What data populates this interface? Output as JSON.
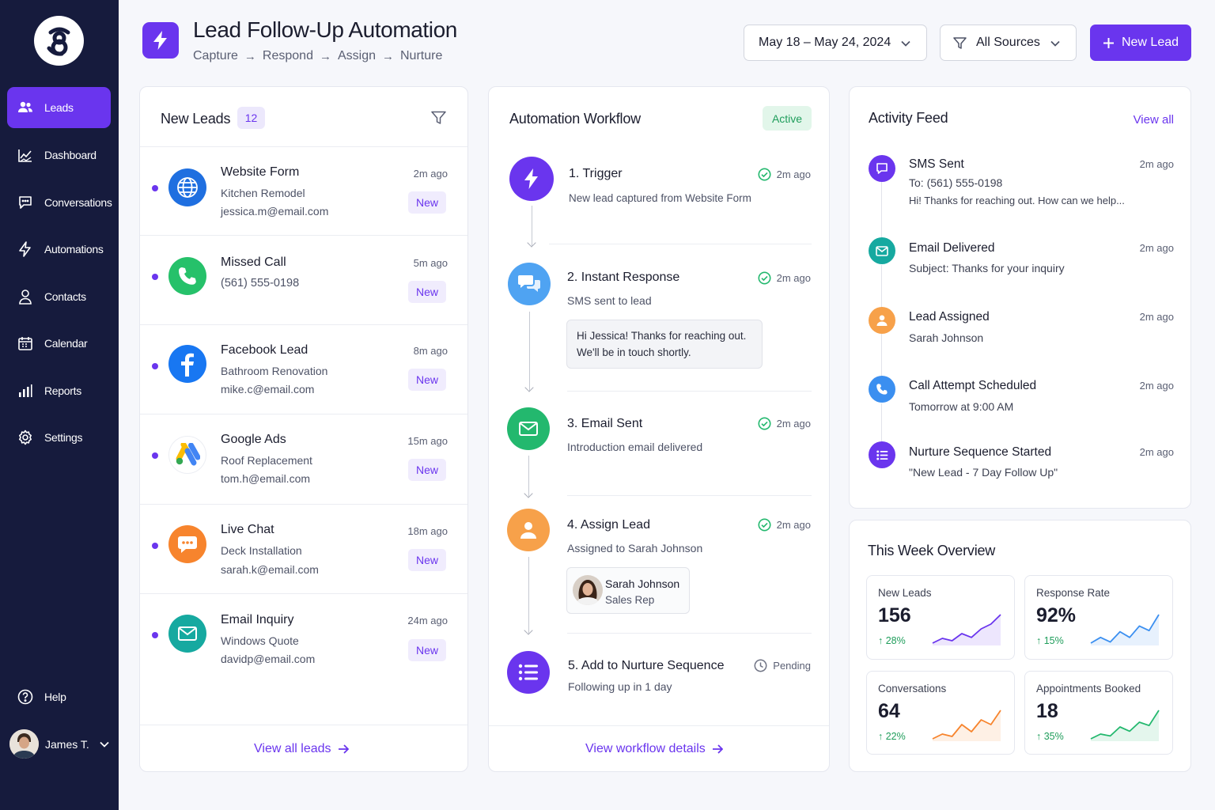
{
  "sidebar": {
    "items": [
      {
        "label": "Leads",
        "icon": "users-icon",
        "active": true
      },
      {
        "label": "Dashboard",
        "icon": "chart-line-icon"
      },
      {
        "label": "Conversations",
        "icon": "chat-icon"
      },
      {
        "label": "Automations",
        "icon": "bolt-icon"
      },
      {
        "label": "Contacts",
        "icon": "person-icon"
      },
      {
        "label": "Calendar",
        "icon": "calendar-icon"
      },
      {
        "label": "Reports",
        "icon": "bar-chart-icon"
      },
      {
        "label": "Settings",
        "icon": "gear-icon"
      }
    ],
    "help": "Help",
    "user": "James T."
  },
  "header": {
    "title": "Lead Follow-Up Automation",
    "breadcrumb": [
      "Capture",
      "Respond",
      "Assign",
      "Nurture"
    ],
    "date_range": "May 18 – May 24, 2024",
    "source_filter": "All Sources",
    "new_lead": "New Lead"
  },
  "leads": {
    "title": "New Leads",
    "count": "12",
    "items": [
      {
        "name": "Website Form",
        "detail": "Kitchen Remodel",
        "email": "jessica.m@email.com",
        "time": "2m ago",
        "badge": "New",
        "icon": "globe-icon",
        "color": "#1f6fe0"
      },
      {
        "name": "Missed Call",
        "detail": "(561) 555-0198",
        "email": "",
        "time": "5m ago",
        "badge": "New",
        "icon": "phone-icon",
        "color": "#26c16a"
      },
      {
        "name": "Facebook Lead",
        "detail": "Bathroom Renovation",
        "email": "mike.c@email.com",
        "time": "8m ago",
        "badge": "New",
        "icon": "facebook-icon",
        "color": "#1877f2"
      },
      {
        "name": "Google Ads",
        "detail": "Roof Replacement",
        "email": "tom.h@email.com",
        "time": "15m ago",
        "badge": "New",
        "icon": "google-ads-icon",
        "color": "#ffffff"
      },
      {
        "name": "Live Chat",
        "detail": "Deck Installation",
        "email": "sarah.k@email.com",
        "time": "18m ago",
        "badge": "New",
        "icon": "chat-bubble-icon",
        "color": "#f7842d"
      },
      {
        "name": "Email Inquiry",
        "detail": "Windows Quote",
        "email": "davidp@email.com",
        "time": "24m ago",
        "badge": "New",
        "icon": "mail-icon",
        "color": "#16a9a0"
      }
    ],
    "footer": "View all leads"
  },
  "workflow": {
    "title": "Automation Workflow",
    "status": "Active",
    "steps": [
      {
        "title": "1. Trigger",
        "sub": "New lead captured from Website Form",
        "time": "2m ago",
        "icon": "bolt-icon",
        "color": "#6a35ee"
      },
      {
        "title": "2. Instant Response",
        "sub": "SMS sent to lead",
        "time": "2m ago",
        "icon": "chat-icon",
        "color": "#4fa3f2",
        "message": [
          "Hi Jessica! Thanks for reaching out.",
          "We'll be in touch shortly."
        ]
      },
      {
        "title": "3. Email Sent",
        "sub": "Introduction email delivered",
        "time": "2m ago",
        "icon": "mail-icon",
        "color": "#23b86e"
      },
      {
        "title": "4. Assign Lead",
        "sub": "Assigned to Sarah Johnson",
        "time": "2m ago",
        "icon": "person-icon",
        "color": "#f7a14a",
        "assignee": {
          "name": "Sarah Johnson",
          "role": "Sales Rep"
        }
      },
      {
        "title": "5. Add to Nurture Sequence",
        "sub": "Following up in 1 day",
        "time": "Pending",
        "icon": "list-icon",
        "color": "#6a35ee"
      }
    ],
    "footer": "View workflow details"
  },
  "activity": {
    "title": "Activity Feed",
    "view_all": "View all",
    "items": [
      {
        "title": "SMS Sent",
        "line1": "To: (561) 555-0198",
        "line2": "Hi! Thanks for reaching out. How can we help...",
        "time": "2m ago",
        "color": "#6a35ee",
        "icon": "chat-icon"
      },
      {
        "title": "Email Delivered",
        "line1": "Subject: Thanks for your inquiry",
        "time": "2m ago",
        "color": "#16a9a0",
        "icon": "mail-icon"
      },
      {
        "title": "Lead Assigned",
        "line1": "Sarah Johnson",
        "time": "2m ago",
        "color": "#f7a14a",
        "icon": "person-icon"
      },
      {
        "title": "Call Attempt Scheduled",
        "line1": "Tomorrow at 9:00 AM",
        "time": "2m ago",
        "color": "#3b8ff0",
        "icon": "phone-icon"
      },
      {
        "title": "Nurture Sequence Started",
        "line1": "\"New Lead - 7 Day Follow Up\"",
        "time": "2m ago",
        "color": "#6a35ee",
        "icon": "list-icon"
      }
    ]
  },
  "overview": {
    "title": "This Week Overview",
    "stats": [
      {
        "label": "New Leads",
        "value": "156",
        "delta": "28%",
        "color": "#6a35ee",
        "trend": [
          3,
          4,
          3.5,
          5,
          4.2,
          6,
          7,
          9
        ]
      },
      {
        "label": "Response Rate",
        "value": "92%",
        "delta": "15%",
        "color": "#3b8ff0",
        "trend": [
          3,
          4,
          3.2,
          5,
          4,
          6,
          5.2,
          8
        ]
      },
      {
        "label": "Conversations",
        "value": "64",
        "delta": "22%",
        "color": "#f7842d",
        "trend": [
          2,
          3,
          2.5,
          5,
          3.5,
          6,
          5,
          8
        ]
      },
      {
        "label": "Appointments Booked",
        "value": "18",
        "delta": "35%",
        "color": "#23b86e",
        "trend": [
          2,
          3,
          2.6,
          4.5,
          3.6,
          5.5,
          4.8,
          8
        ]
      }
    ]
  }
}
